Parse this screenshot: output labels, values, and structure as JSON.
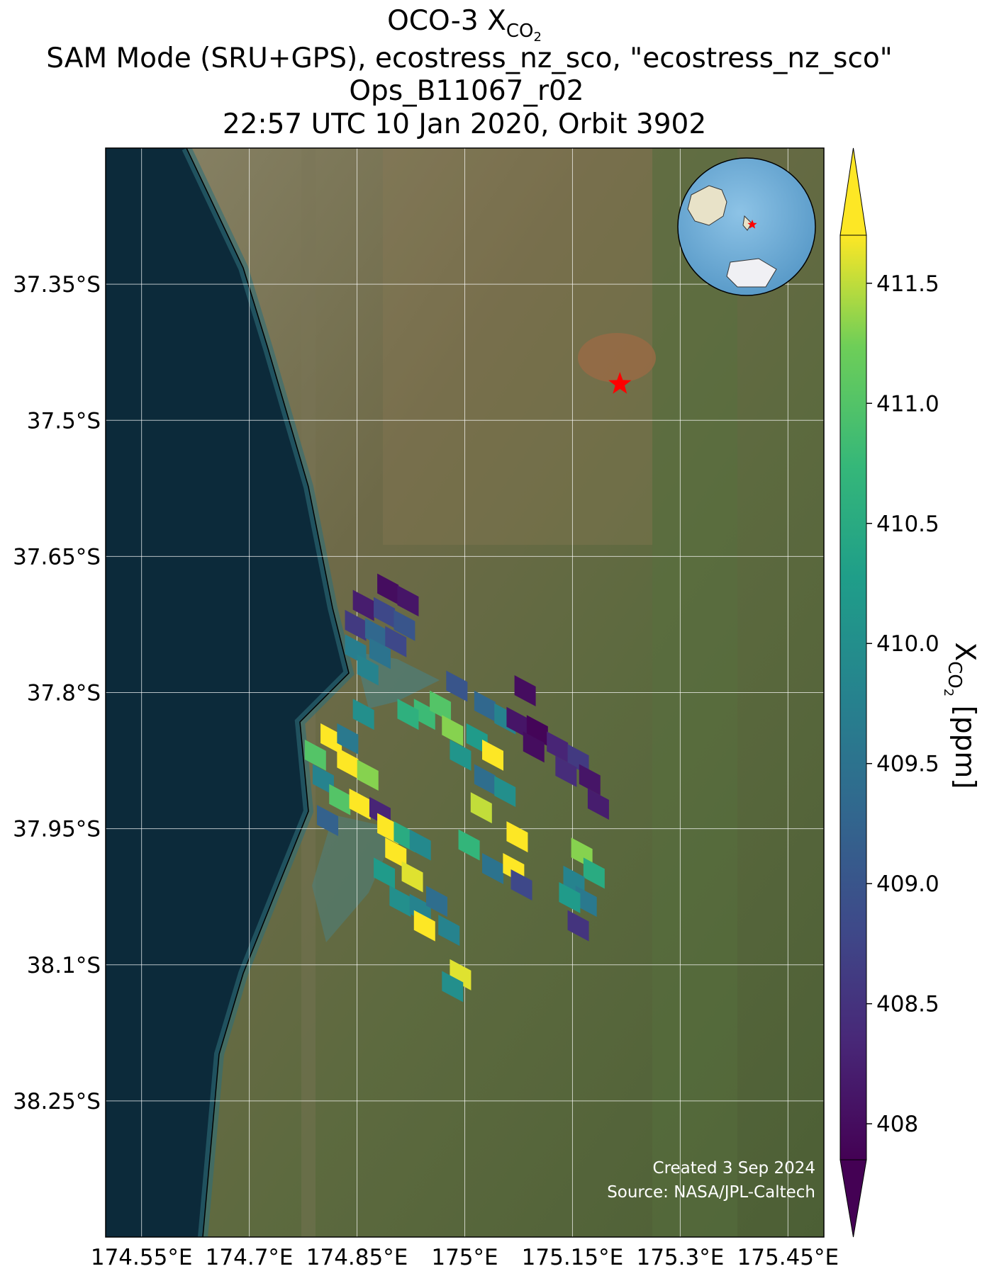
{
  "chart_data": {
    "type": "map",
    "title": {
      "main": "OCO-3 X",
      "sub": "CO",
      "subsub": "2"
    },
    "subtitles": [
      "SAM Mode (SRU+GPS), ecostress_nz_sco, \"ecostress_nz_sco\"",
      "Ops_B11067_r02",
      "22:57 UTC 10 Jan 2020, Orbit 3902"
    ],
    "xlim": [
      174.5,
      175.5
    ],
    "ylim": [
      -38.4,
      -37.2
    ],
    "xticks": [
      {
        "value": 174.55,
        "label": "174.55°E"
      },
      {
        "value": 174.7,
        "label": "174.7°E"
      },
      {
        "value": 174.85,
        "label": "174.85°E"
      },
      {
        "value": 175.0,
        "label": "175°E"
      },
      {
        "value": 175.15,
        "label": "175.15°E"
      },
      {
        "value": 175.3,
        "label": "175.3°E"
      },
      {
        "value": 175.45,
        "label": "175.45°E"
      }
    ],
    "yticks": [
      {
        "value": -37.35,
        "label": "37.35°S"
      },
      {
        "value": -37.5,
        "label": "37.5°S"
      },
      {
        "value": -37.65,
        "label": "37.65°S"
      },
      {
        "value": -37.8,
        "label": "37.8°S"
      },
      {
        "value": -37.95,
        "label": "37.95°S"
      },
      {
        "value": -38.1,
        "label": "38.1°S"
      },
      {
        "value": -38.25,
        "label": "38.25°S"
      }
    ],
    "grid": true,
    "target": {
      "lon": 175.216,
      "lat": -37.46,
      "color": "#ff0000"
    },
    "x": [
      174.893,
      174.921,
      174.859,
      174.888,
      174.916,
      174.848,
      174.876,
      174.904,
      174.848,
      174.882,
      174.865,
      174.989,
      175.028,
      175.056,
      175.084,
      175.073,
      175.101,
      175.129,
      175.158,
      175.174,
      175.141,
      175.096,
      175.186,
      174.944,
      174.966,
      174.921,
      174.983,
      175.017,
      175.039,
      174.994,
      175.028,
      175.056,
      175.023,
      175.006,
      175.039,
      175.073,
      175.068,
      175.079,
      174.814,
      174.792,
      174.837,
      174.865,
      174.803,
      174.826,
      174.854,
      174.882,
      174.809,
      174.893,
      174.916,
      174.938,
      174.904,
      174.927,
      174.888,
      174.91,
      174.938,
      174.961,
      174.944,
      174.978,
      174.994,
      174.983,
      174.859,
      174.837,
      175.163,
      175.18,
      175.152,
      175.169,
      175.158,
      175.146
    ],
    "y": [
      -37.686,
      -37.699,
      -37.704,
      -37.712,
      -37.726,
      -37.726,
      -37.735,
      -37.744,
      -37.753,
      -37.757,
      -37.775,
      -37.793,
      -37.815,
      -37.829,
      -37.798,
      -37.833,
      -37.842,
      -37.86,
      -37.874,
      -37.896,
      -37.887,
      -37.86,
      -37.923,
      -37.824,
      -37.815,
      -37.824,
      -37.842,
      -37.851,
      -37.869,
      -37.869,
      -37.896,
      -37.909,
      -37.927,
      -37.968,
      -37.994,
      -37.959,
      -37.994,
      -38.012,
      -37.851,
      -37.869,
      -37.878,
      -37.891,
      -37.896,
      -37.918,
      -37.923,
      -37.932,
      -37.941,
      -37.95,
      -37.959,
      -37.968,
      -37.977,
      -38.003,
      -37.999,
      -38.03,
      -38.039,
      -38.03,
      -38.057,
      -38.062,
      -38.111,
      -38.124,
      -37.824,
      -37.851,
      -37.977,
      -37.999,
      -38.008,
      -38.03,
      -38.057,
      -38.026
    ],
    "values": [
      408.0,
      408.1,
      408.2,
      408.8,
      409.0,
      408.6,
      409.3,
      408.8,
      409.7,
      409.5,
      409.8,
      409.0,
      409.3,
      409.8,
      408.0,
      408.1,
      407.9,
      408.3,
      408.6,
      408.1,
      408.4,
      408.0,
      408.2,
      410.8,
      411.0,
      410.6,
      411.3,
      410.2,
      411.8,
      410.1,
      409.4,
      410.0,
      411.5,
      410.7,
      409.5,
      411.8,
      411.7,
      408.8,
      411.8,
      411.0,
      411.8,
      411.3,
      409.8,
      411.0,
      411.8,
      408.3,
      409.2,
      411.8,
      410.5,
      409.9,
      411.8,
      411.6,
      410.2,
      410.0,
      409.8,
      409.4,
      411.8,
      409.8,
      411.6,
      410.0,
      410.0,
      409.6,
      411.3,
      410.5,
      409.8,
      409.6,
      408.5,
      410.2
    ],
    "colorbar": {
      "label": {
        "main": "X",
        "sub": "CO",
        "subsub": "2",
        "unit": " [ppm]"
      },
      "lim": [
        407.85,
        411.7
      ],
      "ticks": [
        408.0,
        {
          "value": 408.5,
          "label": "408.5"
        },
        {
          "value": 409.0,
          "label": "409.0"
        },
        {
          "value": 409.5,
          "label": "409.5"
        },
        {
          "value": 410.0,
          "label": "410.0"
        },
        {
          "value": 410.5,
          "label": "410.5"
        },
        {
          "value": 411.0,
          "label": "411.0"
        },
        {
          "value": 411.5,
          "label": "411.5"
        }
      ]
    },
    "annotations": [
      "Created 3 Sep 2024",
      "Source: NASA/JPL-Caltech"
    ]
  }
}
